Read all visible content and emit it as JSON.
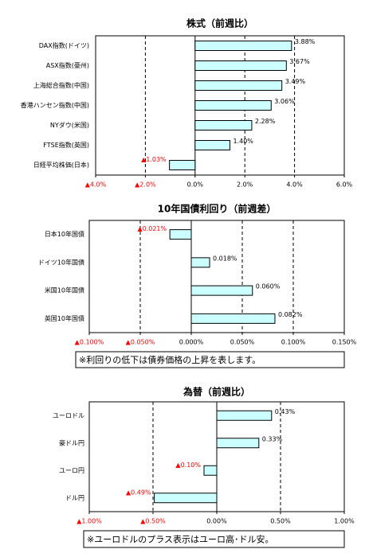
{
  "chart_data": [
    {
      "type": "bar",
      "orientation": "horizontal",
      "title": "株式（前週比）",
      "categories": [
        "DAX指数(ドイツ)",
        "ASX指数(豪州)",
        "上海総合指数(中国)",
        "香港ハンセン指数(中国)",
        "NYダウ(米国)",
        "FTSE指数(英国)",
        "日経平均株価(日本)"
      ],
      "values": [
        3.88,
        3.67,
        3.49,
        3.06,
        2.28,
        1.4,
        -1.03
      ],
      "value_labels": [
        "3.88%",
        "3.67%",
        "3.49%",
        "3.06%",
        "2.28%",
        "1.40%",
        "▲1.03%"
      ],
      "xlim": [
        -4,
        6
      ],
      "xticks": [
        {
          "value": -4,
          "label": "▲4.0%"
        },
        {
          "value": -2,
          "label": "▲2.0%"
        },
        {
          "value": 0,
          "label": "0.0%"
        },
        {
          "value": 2,
          "label": "2.0%"
        },
        {
          "value": 4,
          "label": "4.0%"
        },
        {
          "value": 6,
          "label": "6.0%"
        }
      ],
      "color": "#ccffff",
      "negative_color": "#ff0000",
      "grid": true
    },
    {
      "type": "bar",
      "orientation": "horizontal",
      "title": "10年国債利回り（前週差）",
      "categories": [
        "日本10年国債",
        "ドイツ10年国債",
        "米国10年国債",
        "英国10年国債"
      ],
      "values": [
        -0.021,
        0.018,
        0.06,
        0.082
      ],
      "value_labels": [
        "▲0.021%",
        "0.018%",
        "0.060%",
        "0.082%"
      ],
      "xlim": [
        -0.1,
        0.15
      ],
      "xticks": [
        {
          "value": -0.1,
          "label": "▲0.100%"
        },
        {
          "value": -0.05,
          "label": "▲0.050%"
        },
        {
          "value": 0,
          "label": "0.000%"
        },
        {
          "value": 0.05,
          "label": "0.050%"
        },
        {
          "value": 0.1,
          "label": "0.100%"
        },
        {
          "value": 0.15,
          "label": "0.150%"
        }
      ],
      "color": "#ccffff",
      "negative_color": "#ff0000",
      "grid": true,
      "note": "※利回りの低下は債券価格の上昇を表します。"
    },
    {
      "type": "bar",
      "orientation": "horizontal",
      "title": "為替（前週比）",
      "categories": [
        "ユーロドル",
        "豪ドル円",
        "ユーロ円",
        "ドル円"
      ],
      "values": [
        0.43,
        0.33,
        -0.1,
        -0.49
      ],
      "value_labels": [
        "0.43%",
        "0.33%",
        "▲0.10%",
        "▲0.49%"
      ],
      "xlim": [
        -1,
        1
      ],
      "xticks": [
        {
          "value": -1,
          "label": "▲1.00%"
        },
        {
          "value": -0.5,
          "label": "▲0.50%"
        },
        {
          "value": 0,
          "label": "0.00%"
        },
        {
          "value": 0.5,
          "label": "0.50%"
        },
        {
          "value": 1,
          "label": "1.00%"
        }
      ],
      "color": "#ccffff",
      "negative_color": "#ff0000",
      "grid": true,
      "note": "※ユーロドルのプラス表示はユーロ高･ドル安。"
    }
  ]
}
